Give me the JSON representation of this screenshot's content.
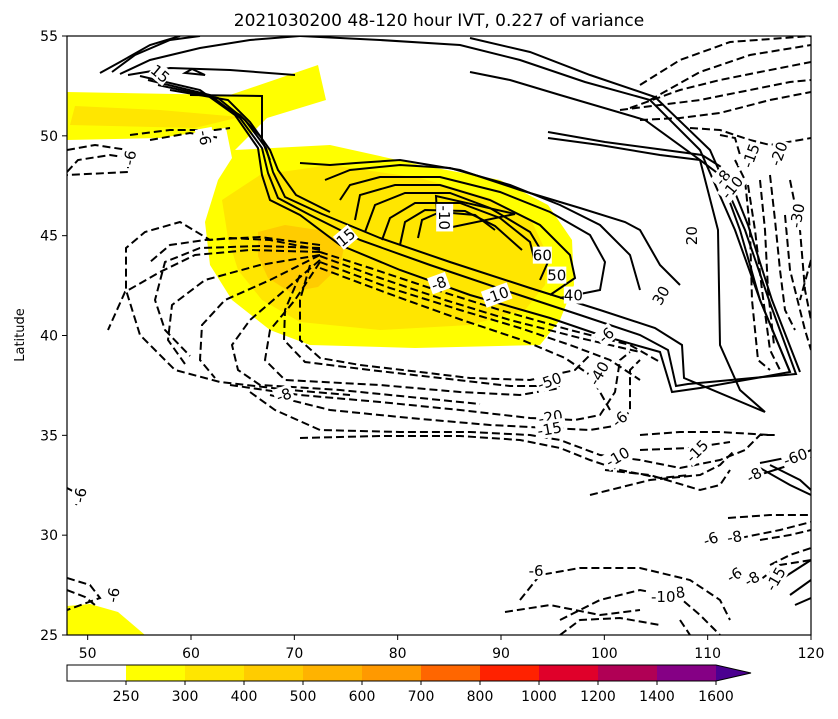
{
  "chart_data": {
    "type": "contour",
    "title": "2021030200 48-120 hour IVT, 0.227 of variance",
    "ylabel": "Latitude",
    "xlabel": "",
    "xlim": [
      48,
      120
    ],
    "ylim": [
      25,
      55
    ],
    "xticks": [
      "50",
      "60",
      "70",
      "80",
      "90",
      "100",
      "110",
      "120"
    ],
    "yticks": [
      "25",
      "30",
      "35",
      "40",
      "45",
      "50",
      "55"
    ],
    "colorbar": {
      "levels": [
        "250",
        "300",
        "400",
        "500",
        "600",
        "700",
        "800",
        "1000",
        "1200",
        "1400",
        "1600"
      ],
      "colors": [
        "#ffffff",
        "#ffff00",
        "#ffe600",
        "#ffcc00",
        "#ffb300",
        "#ff9900",
        "#ff6600",
        "#ff2200",
        "#e0002a",
        "#b00055",
        "#850085",
        "#4b0090"
      ],
      "extend": "max"
    },
    "shading": [
      {
        "level": "300",
        "color": "#ffff00"
      },
      {
        "level": "400",
        "color": "#ffe600"
      },
      {
        "level": "500",
        "color": "#ffcc00"
      }
    ],
    "contour_labels": [
      {
        "text": "15",
        "lon": 57.0,
        "lat": 53.1,
        "rot": 40
      },
      {
        "text": "-6",
        "lon": 61.3,
        "lat": 49.9,
        "rot": 80
      },
      {
        "text": "-6",
        "lon": 54.1,
        "lat": 48.9,
        "rot": -80
      },
      {
        "text": "15",
        "lon": 75.0,
        "lat": 44.9,
        "rot": -40
      },
      {
        "text": "-10",
        "lon": 84.5,
        "lat": 45.9,
        "rot": 90
      },
      {
        "text": "-8",
        "lon": 84.0,
        "lat": 42.6,
        "rot": -20
      },
      {
        "text": "-10",
        "lon": 89.6,
        "lat": 42.0,
        "rot": -20
      },
      {
        "text": "60",
        "lon": 94.0,
        "lat": 44.0,
        "rot": 0
      },
      {
        "text": "50",
        "lon": 95.4,
        "lat": 43.0,
        "rot": 0
      },
      {
        "text": "40",
        "lon": 97.0,
        "lat": 42.0,
        "rot": 0
      },
      {
        "text": "30",
        "lon": 105.5,
        "lat": 42.0,
        "rot": -60
      },
      {
        "text": "20",
        "lon": 108.5,
        "lat": 45.0,
        "rot": -90
      },
      {
        "text": "-6",
        "lon": 100.2,
        "lat": 40.0,
        "rot": -40
      },
      {
        "text": "-50",
        "lon": 94.7,
        "lat": 37.7,
        "rot": -20
      },
      {
        "text": "-40",
        "lon": 99.5,
        "lat": 38.1,
        "rot": -60
      },
      {
        "text": "-8",
        "lon": 69.0,
        "lat": 37.0,
        "rot": -20
      },
      {
        "text": "-20",
        "lon": 94.8,
        "lat": 35.9,
        "rot": -10
      },
      {
        "text": "-15",
        "lon": 94.7,
        "lat": 35.3,
        "rot": -10
      },
      {
        "text": "-6",
        "lon": 101.5,
        "lat": 35.8,
        "rot": -40
      },
      {
        "text": "-10",
        "lon": 101.3,
        "lat": 33.9,
        "rot": -30
      },
      {
        "text": "-15",
        "lon": 109.0,
        "lat": 34.2,
        "rot": -45
      },
      {
        "text": "-8",
        "lon": 111.5,
        "lat": 47.9,
        "rot": -50
      },
      {
        "text": "-10",
        "lon": 112.4,
        "lat": 47.4,
        "rot": -50
      },
      {
        "text": "-15",
        "lon": 114.2,
        "lat": 49.0,
        "rot": -70
      },
      {
        "text": "-20",
        "lon": 116.9,
        "lat": 49.1,
        "rot": -70
      },
      {
        "text": "-30",
        "lon": 118.7,
        "lat": 46.0,
        "rot": -80
      },
      {
        "text": "-60",
        "lon": 118.5,
        "lat": 33.9,
        "rot": -20
      },
      {
        "text": "-8",
        "lon": 114.5,
        "lat": 33.0,
        "rot": -30
      },
      {
        "text": "-6",
        "lon": 49.3,
        "lat": 32.0,
        "rot": -80
      },
      {
        "text": "-6",
        "lon": 110.3,
        "lat": 29.8,
        "rot": -20
      },
      {
        "text": "-8",
        "lon": 112.6,
        "lat": 29.9,
        "rot": -10
      },
      {
        "text": "-6",
        "lon": 93.4,
        "lat": 28.2,
        "rot": 0
      },
      {
        "text": "-6",
        "lon": 112.6,
        "lat": 28.0,
        "rot": -30
      },
      {
        "text": "-8",
        "lon": 114.3,
        "lat": 27.8,
        "rot": -30
      },
      {
        "text": "-15",
        "lon": 116.6,
        "lat": 27.8,
        "rot": -60
      },
      {
        "text": "-8",
        "lon": 107.1,
        "lat": 27.1,
        "rot": -10
      },
      {
        "text": "-10",
        "lon": 105.7,
        "lat": 26.9,
        "rot": 0
      },
      {
        "text": "-6",
        "lon": 52.5,
        "lat": 27.0,
        "rot": -80
      }
    ]
  }
}
